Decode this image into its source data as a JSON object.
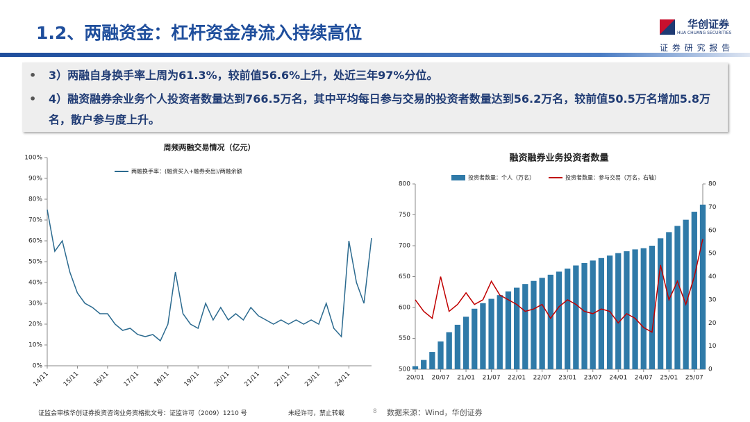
{
  "header": {
    "title": "1.2、两融资金：杠杆资金净流入持续高位",
    "logo": "华创证券",
    "logo_en": "HUA CHUANG SECURITIES",
    "tagline": "证 券 研 究 报 告"
  },
  "bullets": [
    "3）两融自身换手率上周为61.3%，较前值56.6%上升，处近三年97%分位。",
    "4）融资融券余业务个人投资者数量达到766.5万名，其中平均每日参与交易的投资者数量达到56.2万名，较前值50.5万名增加5.8万名，散户参与度上升。"
  ],
  "footer": {
    "license": "证监会审核华创证券投资咨询业务资格批文号：证监许可（2009）1210 号",
    "notice": "未经许可，禁止转载",
    "page": "8",
    "source": "数据来源：Wind，华创证券"
  },
  "chart_data": [
    {
      "type": "line",
      "title": "周频两融交易情况（亿元）",
      "x": [
        "14/11",
        "15/02",
        "15/05",
        "15/08",
        "15/11",
        "16/02",
        "16/05",
        "16/08",
        "16/11",
        "17/02",
        "17/05",
        "17/08",
        "17/11",
        "18/02",
        "18/05",
        "18/08",
        "18/11",
        "19/02",
        "19/05",
        "19/08",
        "19/11",
        "20/02",
        "20/05",
        "20/08",
        "20/11",
        "21/02",
        "21/05",
        "21/08",
        "21/11",
        "22/02",
        "22/05",
        "22/08",
        "22/11",
        "23/02",
        "23/05",
        "23/08",
        "23/11",
        "24/02",
        "24/05",
        "24/08",
        "24/11",
        "25/02",
        "25/05",
        "25/08"
      ],
      "xlim": [
        "14/11",
        "25/08"
      ],
      "xticks": [
        "14/11",
        "15/11",
        "16/11",
        "17/11",
        "18/11",
        "19/11",
        "20/11",
        "21/11",
        "22/11",
        "23/11",
        "24/11"
      ],
      "series": [
        {
          "name": "两融换手率：(融资买入+融券卖出)/两融余额",
          "color": "#2b6a8f",
          "values": [
            75,
            55,
            60,
            45,
            35,
            30,
            28,
            25,
            25,
            20,
            17,
            18,
            15,
            14,
            15,
            12,
            20,
            45,
            25,
            20,
            18,
            30,
            22,
            28,
            22,
            25,
            22,
            28,
            24,
            22,
            20,
            22,
            20,
            22,
            20,
            22,
            20,
            30,
            18,
            14,
            60,
            40,
            30,
            61.3
          ]
        }
      ],
      "ylim": [
        0,
        100
      ],
      "yticks": [
        {
          "value": 0,
          "label": "0%"
        },
        {
          "value": 10,
          "label": "10%"
        },
        {
          "value": 20,
          "label": "20%"
        },
        {
          "value": 30,
          "label": "30%"
        },
        {
          "value": 40,
          "label": "40%"
        },
        {
          "value": 50,
          "label": "50%"
        },
        {
          "value": 60,
          "label": "60%"
        },
        {
          "value": 70,
          "label": "70%"
        },
        {
          "value": 80,
          "label": "80%"
        },
        {
          "value": 90,
          "label": "90%"
        },
        {
          "value": 100,
          "label": "100%"
        }
      ]
    },
    {
      "type": "bar",
      "title": "融资融券业务投资者数量",
      "x": [
        "20/01",
        "20/03",
        "20/05",
        "20/07",
        "20/09",
        "20/11",
        "21/01",
        "21/03",
        "21/05",
        "21/07",
        "21/09",
        "21/11",
        "22/01",
        "22/03",
        "22/05",
        "22/07",
        "22/09",
        "22/11",
        "23/01",
        "23/03",
        "23/05",
        "23/07",
        "23/09",
        "23/11",
        "24/01",
        "24/03",
        "24/05",
        "24/07",
        "24/09",
        "24/11",
        "25/01",
        "25/03",
        "25/05",
        "25/07",
        "25/09"
      ],
      "xlim": [
        "20/01",
        "25/09"
      ],
      "xticks": [
        "20/01",
        "20/07",
        "21/01",
        "21/07",
        "22/01",
        "22/07",
        "23/01",
        "23/07",
        "24/01",
        "24/07",
        "25/01",
        "25/07"
      ],
      "series": [
        {
          "name": "投资者数量：个人（万名）",
          "type": "bar",
          "color": "#2f7aa8",
          "values": [
            505,
            515,
            528,
            545,
            560,
            572,
            585,
            598,
            607,
            614,
            620,
            626,
            632,
            638,
            643,
            648,
            653,
            658,
            663,
            668,
            672,
            676,
            680,
            684,
            688,
            691,
            694,
            696,
            700,
            712,
            722,
            732,
            742,
            755,
            766.5
          ]
        },
        {
          "name": "投资者数量：参与交易（万名，右轴）",
          "type": "line",
          "axis": "y2",
          "color": "#c00000",
          "values": [
            30,
            25,
            22,
            40,
            25,
            28,
            33,
            28,
            30,
            38,
            32,
            30,
            28,
            25,
            26,
            28,
            22,
            27,
            30,
            28,
            25,
            24,
            26,
            25,
            20,
            24,
            22,
            18,
            16,
            45,
            30,
            38,
            28,
            40,
            56.2
          ]
        }
      ],
      "ylim": [
        500,
        800
      ],
      "yticks": [
        500,
        550,
        600,
        650,
        700,
        750,
        800
      ],
      "y2lim": [
        0,
        80
      ],
      "y2ticks": [
        0,
        10,
        20,
        30,
        40,
        50,
        60,
        70,
        80
      ]
    }
  ]
}
